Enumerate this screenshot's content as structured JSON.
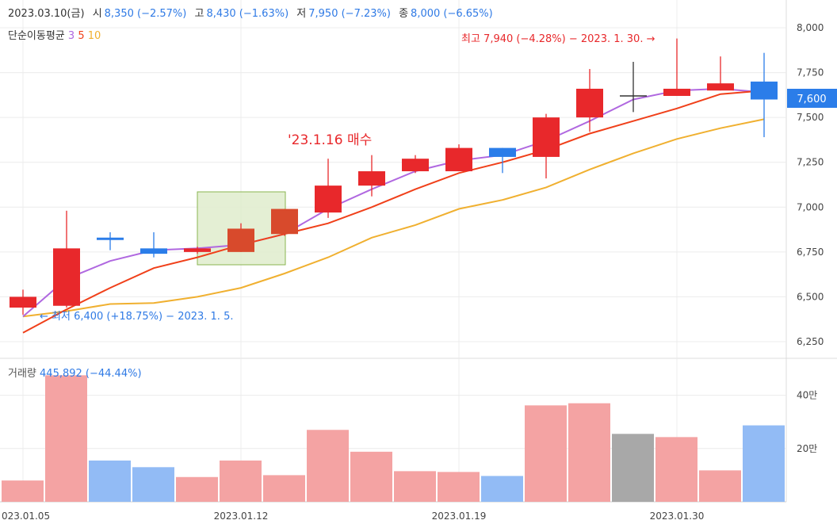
{
  "header": {
    "date": "2023.03.10(금)",
    "open_label": "시",
    "open_value": "8,350 (−2.57%)",
    "high_label": "고",
    "high_value": "8,430 (−1.63%)",
    "low_label": "저",
    "low_value": "7,950 (−7.23%)",
    "close_label": "종",
    "close_value": "8,000 (−6.65%)"
  },
  "ma_legend": {
    "label": "단순이동평균",
    "p3": "3",
    "p5": "5",
    "p10": "10"
  },
  "volume_legend": {
    "label": "거래량",
    "value": "445,892 (−44.44%)"
  },
  "annotations": {
    "high_note": "최고 7,940 (−4.28%) − 2023. 1. 30. →",
    "low_note": "← 최저 6,400 (+18.75%) − 2023. 1. 5.",
    "buy_note": "'23.1.16 매수"
  },
  "current_price": "7,600",
  "colors": {
    "up": "#e8282b",
    "down": "#2b7de9",
    "flat": "#333333",
    "ma3": "#b068e0",
    "ma5": "#f0401a",
    "ma10": "#f0b030",
    "vol_up": "#f4a3a3",
    "vol_down": "#92bbf5",
    "vol_flat": "#a8a8a8",
    "grid": "#ececec",
    "highlight_fill": "#dfeccc",
    "highlight_stroke": "#8ab550"
  },
  "chart_data": {
    "type": "candlestick",
    "x_ticks": [
      "023.01.05",
      "2023.01.12",
      "2023.01.19",
      "2023.01.30"
    ],
    "price_ticks": [
      "8,000",
      "7,750",
      "7,500",
      "7,250",
      "7,000",
      "6,750",
      "6,500",
      "6,250"
    ],
    "price_range": [
      6200,
      8100
    ],
    "volume_ticks": [
      "40만",
      "20만"
    ],
    "volume_range": [
      0,
      500000
    ],
    "candles": [
      {
        "open": 6500,
        "high": 6540,
        "low": 6400,
        "close": 6440,
        "volume": 80000,
        "dir": "up"
      },
      {
        "open": 6450,
        "high": 6980,
        "low": 6440,
        "close": 6770,
        "volume": 475000,
        "dir": "up"
      },
      {
        "open": 6830,
        "high": 6860,
        "low": 6760,
        "close": 6820,
        "volume": 155000,
        "dir": "down"
      },
      {
        "open": 6770,
        "high": 6860,
        "low": 6720,
        "close": 6740,
        "volume": 130000,
        "dir": "down"
      },
      {
        "open": 6750,
        "high": 6780,
        "low": 6740,
        "close": 6770,
        "volume": 93000,
        "dir": "up"
      },
      {
        "open": 6750,
        "high": 6910,
        "low": 6750,
        "close": 6880,
        "volume": 155000,
        "dir": "up"
      },
      {
        "open": 6850,
        "high": 6990,
        "low": 6840,
        "close": 6990,
        "volume": 100000,
        "dir": "up"
      },
      {
        "open": 6970,
        "high": 7270,
        "low": 6940,
        "close": 7120,
        "volume": 270000,
        "dir": "up"
      },
      {
        "open": 7120,
        "high": 7290,
        "low": 7060,
        "close": 7200,
        "volume": 188000,
        "dir": "up"
      },
      {
        "open": 7200,
        "high": 7290,
        "low": 7190,
        "close": 7270,
        "volume": 115000,
        "dir": "up"
      },
      {
        "open": 7200,
        "high": 7350,
        "low": 7200,
        "close": 7330,
        "volume": 112000,
        "dir": "up"
      },
      {
        "open": 7330,
        "high": 7330,
        "low": 7190,
        "close": 7280,
        "volume": 97000,
        "dir": "down"
      },
      {
        "open": 7280,
        "high": 7520,
        "low": 7160,
        "close": 7500,
        "volume": 362000,
        "dir": "up"
      },
      {
        "open": 7500,
        "high": 7770,
        "low": 7420,
        "close": 7660,
        "volume": 370000,
        "dir": "up"
      },
      {
        "open": 7620,
        "high": 7810,
        "low": 7530,
        "close": 7620,
        "volume": 255000,
        "dir": "flat"
      },
      {
        "open": 7620,
        "high": 7940,
        "low": 7620,
        "close": 7660,
        "volume": 243000,
        "dir": "up"
      },
      {
        "open": 7650,
        "high": 7840,
        "low": 7650,
        "close": 7690,
        "volume": 118000,
        "dir": "up"
      },
      {
        "open": 7700,
        "high": 7860,
        "low": 7390,
        "close": 7600,
        "volume": 287000,
        "dir": "down"
      }
    ],
    "ma3": [
      6390,
      6600,
      6700,
      6760,
      6770,
      6790,
      6850,
      6990,
      7100,
      7200,
      7260,
      7290,
      7370,
      7480,
      7600,
      7650,
      7660,
      7640
    ],
    "ma5": [
      6300,
      6430,
      6550,
      6660,
      6720,
      6790,
      6850,
      6910,
      7000,
      7100,
      7190,
      7250,
      7320,
      7410,
      7480,
      7550,
      7630,
      7650
    ],
    "ma10": [
      6390,
      6420,
      6460,
      6465,
      6500,
      6550,
      6630,
      6720,
      6830,
      6900,
      6990,
      7040,
      7110,
      7210,
      7300,
      7380,
      7440,
      7490
    ]
  }
}
